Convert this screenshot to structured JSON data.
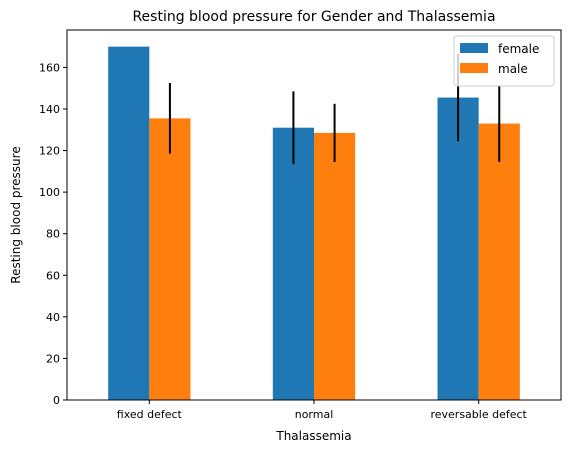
{
  "chart_data": {
    "type": "bar",
    "title": "Resting blood pressure for Gender and Thalassemia",
    "xlabel": "Thalassemia",
    "ylabel": "Resting blood pressure",
    "categories": [
      "fixed defect",
      "normal",
      "reversable defect"
    ],
    "series": [
      {
        "name": "female",
        "color": "#1f77b4",
        "values": [
          170,
          131,
          145.5
        ],
        "error": [
          0,
          17.5,
          21
        ]
      },
      {
        "name": "male",
        "color": "#ff7f0e",
        "values": [
          135.5,
          128.5,
          133
        ],
        "error": [
          17,
          14,
          18.5
        ]
      }
    ],
    "ylim": [
      0,
      178
    ],
    "yticks": [
      0,
      20,
      40,
      60,
      80,
      100,
      120,
      140,
      160
    ],
    "grid": false,
    "legend": "top-right"
  }
}
